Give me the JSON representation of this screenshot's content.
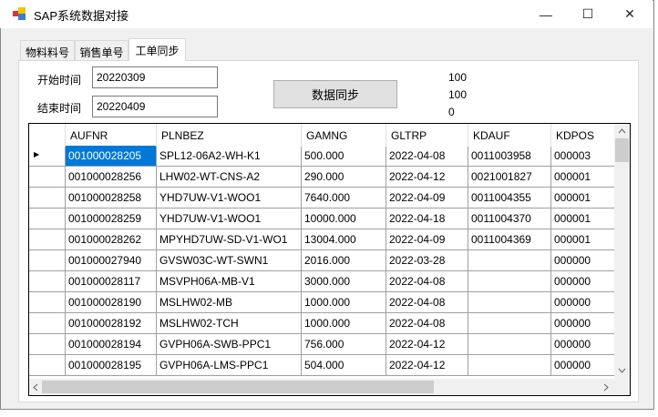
{
  "window": {
    "title": "SAP系统数据对接",
    "minimize": "—",
    "maximize": "☐",
    "close": "✕"
  },
  "tabs": [
    {
      "label": "物料料号"
    },
    {
      "label": "销售单号"
    },
    {
      "label": "工单同步",
      "active": true
    }
  ],
  "form": {
    "start_label": "开始时间",
    "start_value": "20220309",
    "end_label": "结束时间",
    "end_value": "20220409",
    "sync_button": "数据同步"
  },
  "status": [
    "100",
    "100",
    "0"
  ],
  "table": {
    "columns": [
      "AUFNR",
      "PLNBEZ",
      "GAMNG",
      "GLTRP",
      "KDAUF",
      "KDPOS"
    ],
    "rows": [
      [
        "001000028205",
        "SPL12-06A2-WH-K1",
        "500.000",
        "2022-04-08",
        "0011003958",
        "000003"
      ],
      [
        "001000028256",
        "LHW02-WT-CNS-A2",
        "290.000",
        "2022-04-12",
        "0021001827",
        "000001"
      ],
      [
        "001000028258",
        "YHD7UW-V1-WOO1",
        "7640.000",
        "2022-04-09",
        "0011004355",
        "000001"
      ],
      [
        "001000028259",
        "YHD7UW-V1-WOO1",
        "10000.000",
        "2022-04-18",
        "0011004370",
        "000001"
      ],
      [
        "001000028262",
        "MPYHD7UW-SD-V1-WO1",
        "13004.000",
        "2022-04-09",
        "0011004369",
        "000001"
      ],
      [
        "001000027940",
        "GVSW03C-WT-SWN1",
        "2016.000",
        "2022-03-28",
        "",
        "000000"
      ],
      [
        "001000028117",
        "MSVPH06A-MB-V1",
        "3000.000",
        "2022-04-08",
        "",
        "000000"
      ],
      [
        "001000028190",
        "MSLHW02-MB",
        "1000.000",
        "2022-04-08",
        "",
        "000000"
      ],
      [
        "001000028192",
        "MSLHW02-TCH",
        "1000.000",
        "2022-04-08",
        "",
        "000000"
      ],
      [
        "001000028194",
        "GVPH06A-SWB-PPC1",
        "756.000",
        "2022-04-12",
        "",
        "000000"
      ],
      [
        "001000028195",
        "GVPH06A-LMS-PPC1",
        "504.000",
        "2022-04-12",
        "",
        "000000"
      ]
    ],
    "selected_row": 0,
    "selected_col": 0,
    "current_row_marker": "▶"
  },
  "colors": {
    "selection": "#0078d7"
  }
}
